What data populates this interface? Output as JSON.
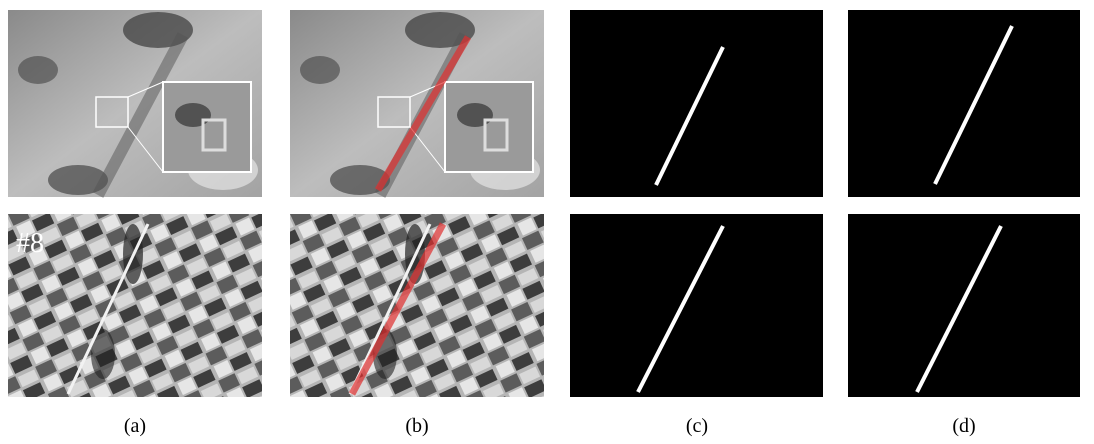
{
  "panels": {
    "overlay_label": "#8",
    "captions": [
      "(a)",
      "(b)",
      "(c)",
      "(d)"
    ]
  }
}
